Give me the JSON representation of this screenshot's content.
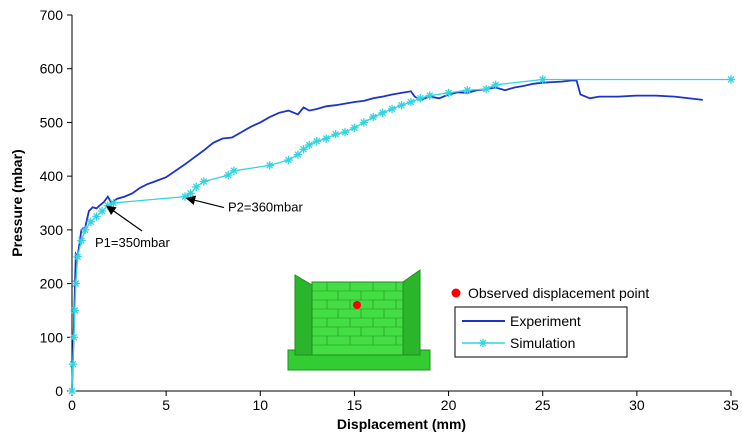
{
  "chart_data": {
    "type": "line",
    "xlabel": "Displacement (mm)",
    "ylabel": "Pressure (mbar)",
    "xlim": [
      0,
      35
    ],
    "ylim": [
      0,
      700
    ],
    "x_ticks": [
      0,
      5,
      10,
      15,
      20,
      25,
      30,
      35
    ],
    "y_ticks": [
      0,
      100,
      200,
      300,
      400,
      500,
      600,
      700
    ],
    "grid": false,
    "legend_position": "bottom-right",
    "series": [
      {
        "name": "Experiment",
        "color": "#1a33cc",
        "marker": "none",
        "points": [
          [
            0,
            0
          ],
          [
            0.1,
            120
          ],
          [
            0.2,
            255
          ],
          [
            0.3,
            250
          ],
          [
            0.5,
            300
          ],
          [
            0.7,
            305
          ],
          [
            0.9,
            335
          ],
          [
            1.1,
            342
          ],
          [
            1.3,
            340
          ],
          [
            1.5,
            346
          ],
          [
            1.7,
            352
          ],
          [
            1.9,
            362
          ],
          [
            2.1,
            350
          ],
          [
            2.4,
            358
          ],
          [
            2.8,
            362
          ],
          [
            3.2,
            368
          ],
          [
            3.6,
            378
          ],
          [
            4.0,
            385
          ],
          [
            4.4,
            390
          ],
          [
            5.0,
            398
          ],
          [
            5.5,
            410
          ],
          [
            6.0,
            422
          ],
          [
            6.5,
            435
          ],
          [
            7.0,
            448
          ],
          [
            7.5,
            462
          ],
          [
            8.0,
            470
          ],
          [
            8.5,
            472
          ],
          [
            9.0,
            482
          ],
          [
            9.5,
            492
          ],
          [
            10.0,
            500
          ],
          [
            10.5,
            510
          ],
          [
            11.0,
            518
          ],
          [
            11.5,
            522
          ],
          [
            12.0,
            515
          ],
          [
            12.3,
            528
          ],
          [
            12.6,
            522
          ],
          [
            13.0,
            525
          ],
          [
            13.5,
            530
          ],
          [
            14.0,
            532
          ],
          [
            14.5,
            535
          ],
          [
            15.0,
            538
          ],
          [
            15.5,
            540
          ],
          [
            16.0,
            545
          ],
          [
            16.5,
            548
          ],
          [
            17.0,
            552
          ],
          [
            17.5,
            555
          ],
          [
            18.0,
            558
          ],
          [
            18.2,
            548
          ],
          [
            18.5,
            542
          ],
          [
            19.0,
            548
          ],
          [
            19.5,
            545
          ],
          [
            20.0,
            552
          ],
          [
            20.5,
            556
          ],
          [
            21.0,
            555
          ],
          [
            21.5,
            560
          ],
          [
            22.0,
            562
          ],
          [
            22.5,
            565
          ],
          [
            23.0,
            560
          ],
          [
            23.5,
            565
          ],
          [
            24.0,
            568
          ],
          [
            24.5,
            572
          ],
          [
            25.0,
            574
          ],
          [
            25.5,
            575
          ],
          [
            26.0,
            576
          ],
          [
            26.5,
            578
          ],
          [
            26.8,
            578
          ],
          [
            27.0,
            552
          ],
          [
            27.5,
            545
          ],
          [
            28.0,
            548
          ],
          [
            29.0,
            548
          ],
          [
            30.0,
            550
          ],
          [
            31.0,
            550
          ],
          [
            32.0,
            548
          ],
          [
            33.5,
            542
          ]
        ]
      },
      {
        "name": "Simulation",
        "color": "#33d4e0",
        "marker": "asterisk",
        "points": [
          [
            0,
            0
          ],
          [
            0.05,
            50
          ],
          [
            0.1,
            100
          ],
          [
            0.15,
            150
          ],
          [
            0.2,
            200
          ],
          [
            0.3,
            250
          ],
          [
            0.5,
            280
          ],
          [
            0.7,
            300
          ],
          [
            1.0,
            315
          ],
          [
            1.3,
            325
          ],
          [
            1.6,
            335
          ],
          [
            1.9,
            345
          ],
          [
            2.2,
            350
          ],
          [
            6.0,
            362
          ],
          [
            6.3,
            368
          ],
          [
            6.6,
            380
          ],
          [
            7.0,
            390
          ],
          [
            8.3,
            402
          ],
          [
            8.6,
            410
          ],
          [
            10.5,
            420
          ],
          [
            11.5,
            430
          ],
          [
            12.0,
            440
          ],
          [
            12.3,
            450
          ],
          [
            12.6,
            458
          ],
          [
            13.0,
            465
          ],
          [
            13.5,
            470
          ],
          [
            14.0,
            478
          ],
          [
            14.5,
            482
          ],
          [
            15.0,
            490
          ],
          [
            15.5,
            500
          ],
          [
            16.0,
            510
          ],
          [
            16.5,
            518
          ],
          [
            17.0,
            525
          ],
          [
            17.5,
            532
          ],
          [
            18.0,
            538
          ],
          [
            18.5,
            545
          ],
          [
            19.0,
            550
          ],
          [
            20.0,
            555
          ],
          [
            21.0,
            560
          ],
          [
            22.0,
            562
          ],
          [
            22.5,
            570
          ],
          [
            25.0,
            580
          ],
          [
            35.0,
            580
          ]
        ]
      }
    ],
    "annotations": [
      {
        "text": "P1=350mbar",
        "x": 1.7,
        "y": 350
      },
      {
        "text": "P2=360mbar",
        "x": 6.0,
        "y": 362
      }
    ],
    "legend_note": "Observed displacement point"
  },
  "colors": {
    "experiment": "#1a33cc",
    "simulation": "#33d4e0",
    "observed_point": "#ff0000",
    "wall_model": "#33cc33"
  }
}
